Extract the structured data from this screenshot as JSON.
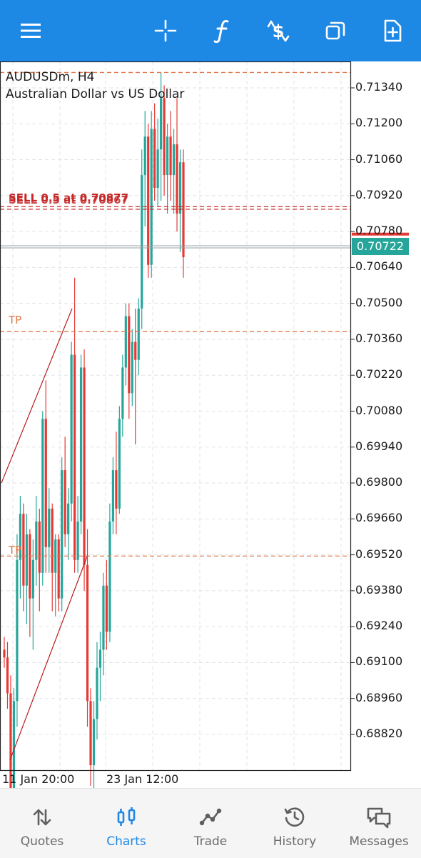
{
  "toolbar": {
    "icons": [
      "menu-icon",
      "crosshair-icon",
      "indicators-icon",
      "new-order-icon",
      "timeframe-icon",
      "objects-icon"
    ],
    "accent": "#1e88e5"
  },
  "chart": {
    "symbol_line": "AUDUSDm, H4",
    "description": "Australian Dollar vs US Dollar",
    "order_label": "SELL 0.5 at 0.70877",
    "order_label_overlap": "SELL 0.5 at 0.70867",
    "tp_label_1": "TP",
    "tp_label_2": "TP",
    "current_price": "0.70722",
    "price_labels": [
      "0.71340",
      "0.71200",
      "0.71060",
      "0.70920",
      "0.70780",
      "0.70640",
      "0.70500",
      "0.70360",
      "0.70220",
      "0.70080",
      "0.69940",
      "0.69800",
      "0.69660",
      "0.69520",
      "0.69380",
      "0.69240",
      "0.69100",
      "0.68960",
      "0.68820"
    ],
    "time_labels": [
      "11 Jan 20:00",
      "23 Jan 12:00"
    ],
    "colors": {
      "bull": "#26a69a",
      "bear": "#e53935",
      "order_line": "#c62828",
      "tp_line": "#e07a4a",
      "grid": "#dfe3e8"
    }
  },
  "chart_data": {
    "type": "candlestick",
    "title": "AUDUSDm, H4",
    "subtitle": "Australian Dollar vs US Dollar",
    "ylim": [
      0.6872,
      0.718
    ],
    "yticks": [
      0.7134,
      0.712,
      0.7106,
      0.7092,
      0.7078,
      0.7064,
      0.705,
      0.7036,
      0.7022,
      0.7008,
      0.6994,
      0.698,
      0.6966,
      0.6952,
      0.6938,
      0.6924,
      0.691,
      0.6896,
      0.6882
    ],
    "xticks": [
      "11 Jan 20:00",
      "23 Jan 12:00"
    ],
    "hlines": [
      {
        "label": "SELL 0.5 at 0.70877",
        "value": 0.70877,
        "style": "dashed"
      },
      {
        "label": "SELL 0.5 at 0.70867",
        "value": 0.70867,
        "style": "dashed"
      },
      {
        "label": "TP",
        "value": 0.7039,
        "style": "dashed"
      },
      {
        "label": "TP",
        "value": 0.69515,
        "style": "dashed"
      },
      {
        "value": 0.714,
        "style": "dashed"
      }
    ],
    "current_price": 0.70722,
    "candles": [
      [
        0.6915,
        0.692,
        0.6908,
        0.6912
      ],
      [
        0.6912,
        0.6918,
        0.6892,
        0.6898
      ],
      [
        0.6898,
        0.6905,
        0.6855,
        0.686
      ],
      [
        0.686,
        0.69,
        0.6852,
        0.6895
      ],
      [
        0.6895,
        0.696,
        0.6885,
        0.695
      ],
      [
        0.695,
        0.6975,
        0.6935,
        0.6968
      ],
      [
        0.6968,
        0.6972,
        0.693,
        0.694
      ],
      [
        0.694,
        0.6968,
        0.6925,
        0.696
      ],
      [
        0.696,
        0.6962,
        0.692,
        0.6935
      ],
      [
        0.6935,
        0.6958,
        0.6915,
        0.695
      ],
      [
        0.695,
        0.6975,
        0.694,
        0.6965
      ],
      [
        0.6965,
        0.697,
        0.693,
        0.6945
      ],
      [
        0.6945,
        0.7008,
        0.694,
        0.7005
      ],
      [
        0.7005,
        0.702,
        0.6945,
        0.6955
      ],
      [
        0.6955,
        0.6978,
        0.6945,
        0.697
      ],
      [
        0.697,
        0.6972,
        0.693,
        0.6945
      ],
      [
        0.6945,
        0.696,
        0.6928,
        0.6958
      ],
      [
        0.6958,
        0.696,
        0.693,
        0.6935
      ],
      [
        0.6935,
        0.699,
        0.693,
        0.6985
      ],
      [
        0.6985,
        0.6998,
        0.6955,
        0.696
      ],
      [
        0.696,
        0.6978,
        0.695,
        0.6972
      ],
      [
        0.6972,
        0.7035,
        0.6965,
        0.703
      ],
      [
        0.703,
        0.706,
        0.6945,
        0.695
      ],
      [
        0.695,
        0.6975,
        0.6945,
        0.6965
      ],
      [
        0.6965,
        0.703,
        0.696,
        0.7025
      ],
      [
        0.7025,
        0.7032,
        0.6938,
        0.6948
      ],
      [
        0.6948,
        0.6962,
        0.6885,
        0.6895
      ],
      [
        0.6895,
        0.69,
        0.6862,
        0.687
      ],
      [
        0.687,
        0.6895,
        0.6852,
        0.6888
      ],
      [
        0.6888,
        0.6918,
        0.688,
        0.6908
      ],
      [
        0.6908,
        0.6922,
        0.6895,
        0.6915
      ],
      [
        0.6915,
        0.6945,
        0.6905,
        0.694
      ],
      [
        0.694,
        0.695,
        0.6915,
        0.6922
      ],
      [
        0.6922,
        0.6972,
        0.6918,
        0.6965
      ],
      [
        0.6965,
        0.699,
        0.696,
        0.6985
      ],
      [
        0.6985,
        0.7,
        0.696,
        0.697
      ],
      [
        0.697,
        0.701,
        0.6968,
        0.7005
      ],
      [
        0.7005,
        0.703,
        0.6998,
        0.7025
      ],
      [
        0.7025,
        0.705,
        0.7018,
        0.7045
      ],
      [
        0.7045,
        0.705,
        0.7005,
        0.7015
      ],
      [
        0.7015,
        0.704,
        0.701,
        0.7035
      ],
      [
        0.7035,
        0.7048,
        0.6995,
        0.7028
      ],
      [
        0.7028,
        0.7052,
        0.7022,
        0.7048
      ],
      [
        0.7048,
        0.711,
        0.704,
        0.71
      ],
      [
        0.71,
        0.7125,
        0.708,
        0.7115
      ],
      [
        0.7115,
        0.712,
        0.706,
        0.7065
      ],
      [
        0.7065,
        0.7125,
        0.706,
        0.7118
      ],
      [
        0.7118,
        0.7128,
        0.709,
        0.7095
      ],
      [
        0.7095,
        0.7122,
        0.7088,
        0.711
      ],
      [
        0.711,
        0.714,
        0.709,
        0.713
      ],
      [
        0.713,
        0.7135,
        0.7092,
        0.71
      ],
      [
        0.71,
        0.712,
        0.7085,
        0.7115
      ],
      [
        0.7115,
        0.7125,
        0.709,
        0.71
      ],
      [
        0.71,
        0.7118,
        0.7085,
        0.7112
      ],
      [
        0.7112,
        0.713,
        0.7078,
        0.7085
      ],
      [
        0.7085,
        0.711,
        0.707,
        0.7105
      ],
      [
        0.7105,
        0.711,
        0.706,
        0.7068
      ]
    ]
  },
  "bottom_nav": [
    {
      "label": "Quotes",
      "icon": "quotes-icon",
      "active": false
    },
    {
      "label": "Charts",
      "icon": "charts-icon",
      "active": true
    },
    {
      "label": "Trade",
      "icon": "trade-icon",
      "active": false
    },
    {
      "label": "History",
      "icon": "history-icon",
      "active": false
    },
    {
      "label": "Messages",
      "icon": "messages-icon",
      "active": false
    }
  ]
}
